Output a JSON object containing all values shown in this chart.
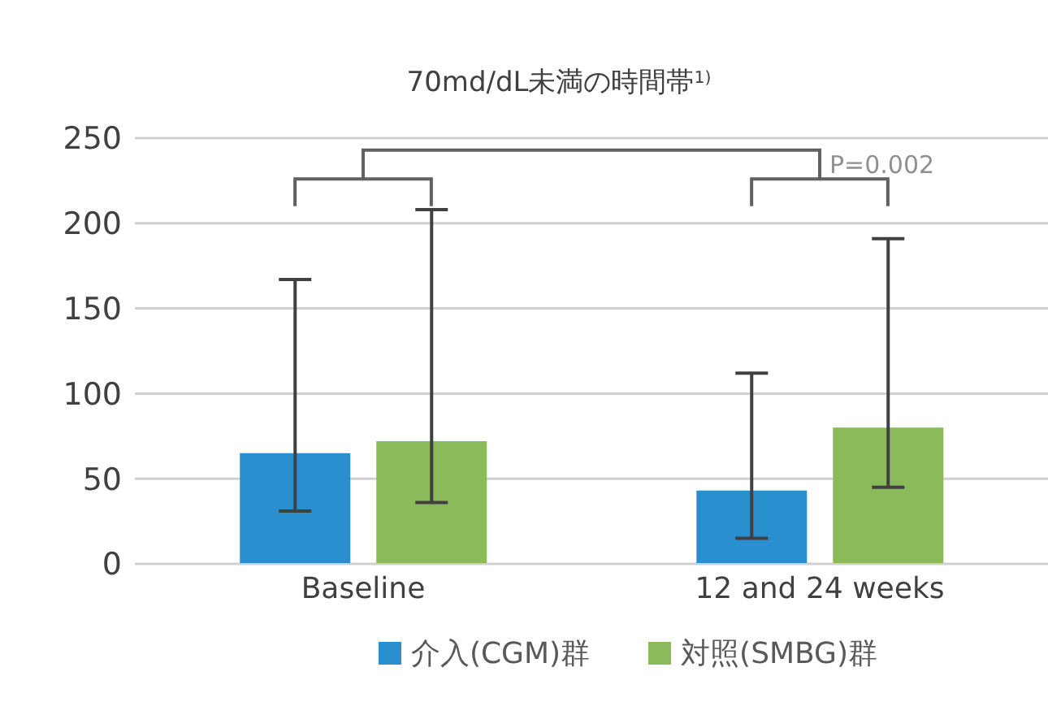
{
  "chart_data": {
    "type": "bar",
    "title": "70md/dL未満の時間帯$^{1)}$",
    "categories": [
      "Baseline",
      "12 and 24 weeks"
    ],
    "series": [
      {
        "name": "介入(CGM)群",
        "color": "#2a8fcf",
        "values": [
          65,
          43
        ],
        "errors": [
          [
            31,
            167
          ],
          [
            15,
            112
          ]
        ]
      },
      {
        "name": "対照(SMBG)群",
        "color": "#8bba5a",
        "values": [
          72,
          80
        ],
        "errors": [
          [
            36,
            208
          ],
          [
            45,
            191
          ]
        ]
      }
    ],
    "ylim": [
      0,
      250
    ],
    "yticks": [
      0,
      50,
      100,
      150,
      200,
      250
    ],
    "grid": "y",
    "legend": "bottom",
    "annotations": [
      "P=0.002"
    ]
  }
}
